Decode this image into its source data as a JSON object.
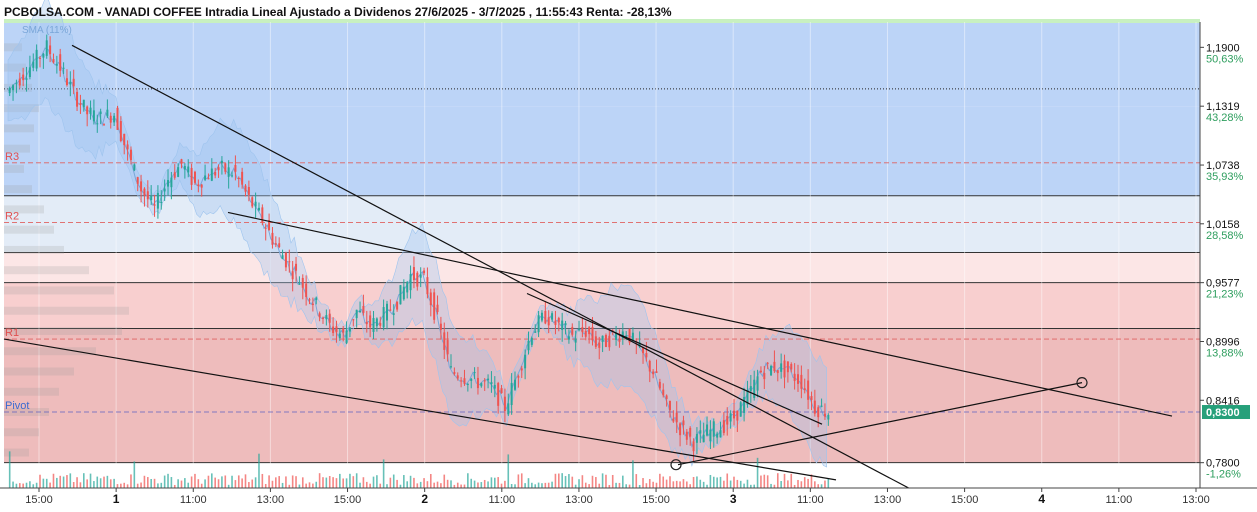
{
  "chart_data": {
    "type": "candlestick",
    "title": "PCBOLSA.COM - VANADI COFFEE Intradia Lineal Ajustado a Dividenos 27/6/2025 - 3/7/2025 , 11:55:43 Renta: -28,13%",
    "legend_label": "SMA (11%)",
    "ylim": [
      0.755,
      1.215
    ],
    "price_levels": [
      {
        "value": 1.19,
        "label": "1,1900",
        "pct": "50,63%"
      },
      {
        "value": 1.1319,
        "label": "1,1319",
        "pct": "43,28%"
      },
      {
        "value": 1.0738,
        "label": "1,0738",
        "pct": "35,93%"
      },
      {
        "value": 1.0158,
        "label": "1,0158",
        "pct": "28,58%"
      },
      {
        "value": 0.9577,
        "label": "0,9577",
        "pct": "21,23%"
      },
      {
        "value": 0.8996,
        "label": "0,8996",
        "pct": "13,88%"
      },
      {
        "value": 0.8416,
        "label": "0,8416",
        "pct": "6,53%"
      },
      {
        "value": 0.78,
        "label": "0,7800",
        "pct": "-1,26%"
      }
    ],
    "current_price": {
      "value": 0.83,
      "label": "0,8300"
    },
    "pivot_levels": [
      {
        "name": "R3",
        "value": 1.076
      },
      {
        "name": "R2",
        "value": 1.017
      },
      {
        "name": "R1",
        "value": 0.902
      },
      {
        "name": "Pivot",
        "value": 0.83
      }
    ],
    "x_ticks": [
      {
        "label": "15:00",
        "bold": false
      },
      {
        "label": "1",
        "bold": true
      },
      {
        "label": "11:00",
        "bold": false
      },
      {
        "label": "13:00",
        "bold": false
      },
      {
        "label": "15:00",
        "bold": false
      },
      {
        "label": "2",
        "bold": true
      },
      {
        "label": "11:00",
        "bold": false
      },
      {
        "label": "13:00",
        "bold": false
      },
      {
        "label": "15:00",
        "bold": false
      },
      {
        "label": "3",
        "bold": true
      },
      {
        "label": "11:00",
        "bold": false
      },
      {
        "label": "13:00",
        "bold": false
      },
      {
        "label": "15:00",
        "bold": false
      },
      {
        "label": "4",
        "bold": true
      },
      {
        "label": "11:00",
        "bold": false
      },
      {
        "label": "13:00",
        "bold": false
      }
    ],
    "price_path": [
      1.145,
      1.16,
      1.175,
      1.19,
      1.17,
      1.145,
      1.125,
      1.12,
      1.125,
      1.085,
      1.05,
      1.03,
      1.06,
      1.075,
      1.055,
      1.065,
      1.07,
      1.065,
      1.04,
      1.02,
      0.995,
      0.975,
      0.955,
      0.935,
      0.915,
      0.905,
      0.93,
      0.915,
      0.925,
      0.94,
      0.965,
      0.96,
      0.92,
      0.87,
      0.865,
      0.86,
      0.855,
      0.835,
      0.87,
      0.91,
      0.925,
      0.915,
      0.905,
      0.91,
      0.895,
      0.905,
      0.91,
      0.89,
      0.87,
      0.835,
      0.815,
      0.8,
      0.81,
      0.815,
      0.825,
      0.845,
      0.87,
      0.875,
      0.87,
      0.86,
      0.835,
      0.83
    ],
    "colors": {
      "up": "#26a69a",
      "down": "#ef5350",
      "band_blue": "#bcd4f7",
      "band_lightblue": "#e3ecf7",
      "band_pink": "#fce6e6",
      "band_red": "#f8cfcf",
      "band_darkred": "#eebcbc",
      "pivot_line": "#e06060",
      "current_bg": "#26a07a"
    }
  }
}
